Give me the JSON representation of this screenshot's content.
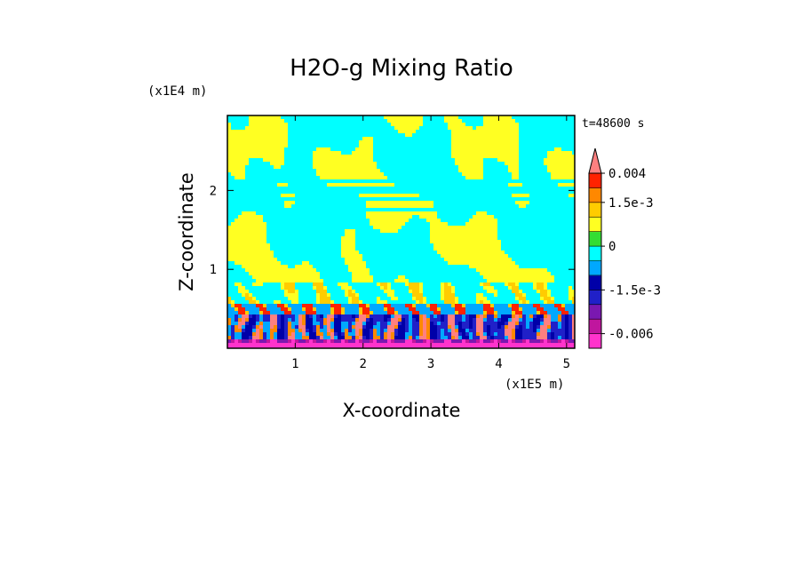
{
  "chart_data": {
    "type": "heatmap",
    "title": "H2O-g Mixing Ratio",
    "xlabel": "X-coordinate",
    "ylabel": "Z-coordinate",
    "x_unit": "(x1E5 m)",
    "y_unit": "(x1E4 m)",
    "time_label": "t=48600 s",
    "xlim": [
      0,
      5.12
    ],
    "ylim": [
      0,
      2.95
    ],
    "x_ticks": [
      1,
      2,
      3,
      4,
      5
    ],
    "y_ticks": [
      1,
      2
    ],
    "x_tick_labels": [
      "1",
      "2",
      "3",
      "4",
      "5"
    ],
    "y_tick_labels": [
      "1",
      "2"
    ],
    "colorbar": {
      "levels": [
        -0.008,
        -0.006,
        -0.004,
        -0.0025,
        -0.0015,
        -0.001,
        -0.0005,
        0,
        0.0005,
        0.001,
        0.0015,
        0.002,
        0.004
      ],
      "colors": [
        "#ff33cc",
        "#c0169e",
        "#7a18b0",
        "#2020c8",
        "#0000a8",
        "#00a8ff",
        "#00ffff",
        "#33dd33",
        "#ffff22",
        "#ffcc00",
        "#ff8800",
        "#ff2200",
        "#ff8080",
        "#f8b0a0"
      ],
      "tick_values": [
        0.004,
        0.0015,
        0,
        -0.0015,
        -0.006
      ],
      "tick_labels": [
        "0.004",
        "1.5e-3",
        "0",
        "-1.5e-3",
        "-0.006"
      ]
    }
  }
}
